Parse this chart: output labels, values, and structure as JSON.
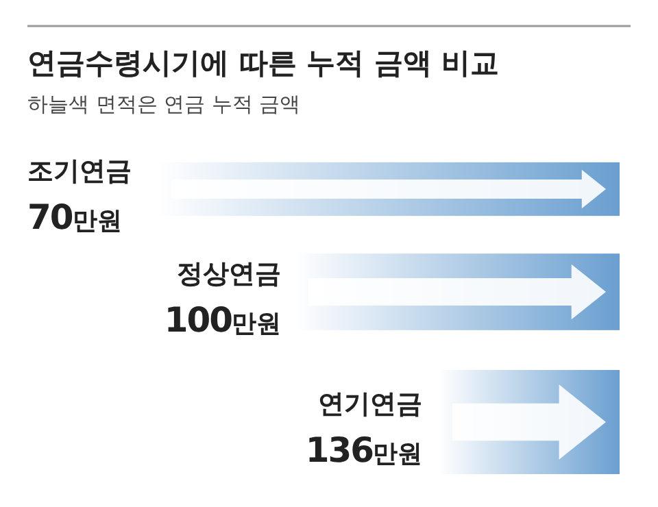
{
  "chart_data": {
    "type": "other",
    "title": "연금수령시기에 따른 누적 금액 비교",
    "subtitle": "하늘색 면적은 연금 누적 금액",
    "categories": [
      "조기연금",
      "정상연금",
      "연기연금"
    ],
    "values": [
      70,
      100,
      136
    ],
    "value_labels": [
      "70만원",
      "100만원",
      "136만원"
    ],
    "color": "#6a9fd0"
  }
}
